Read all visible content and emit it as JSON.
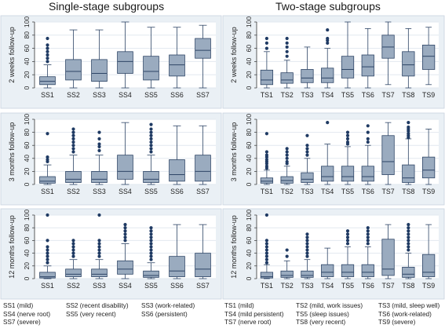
{
  "titles": {
    "left": "Single-stage subgroups",
    "right": "Two-stage subgroups"
  },
  "colors": {
    "box": "#9aabbf",
    "box_edge": "#2e4566",
    "outlier": "#1f3a63",
    "grid": "#e2e8ef",
    "plot_bg": "#ffffff",
    "panel_bg": "#eaf0f5"
  },
  "legend": {
    "left": [
      [
        "SS1 (mild)",
        "SS2 (recent disability)",
        "SS3 (work-related)"
      ],
      [
        "SS4 (nerve root)",
        "SS5 (very recent)",
        "SS6 (persistent)"
      ],
      [
        "SS7 (severe)"
      ]
    ],
    "right": [
      [
        "TS1 (mild)",
        "TS2 (mild, work issues)",
        "TS3 (mild, sleep well)"
      ],
      [
        "TS4 (mild persistent)",
        "TS5 (sleep issues)",
        "TS6 (work-related)"
      ],
      [
        "TS7 (nerve root)",
        "TS8 (very recent)",
        "TS9 (severe)"
      ]
    ]
  },
  "chart_data": [
    {
      "type": "box",
      "panel": "single-stage-2-weeks",
      "ylabel": "2 weeks follow-up",
      "ylim": [
        0,
        100
      ],
      "yticks": [
        0,
        20,
        40,
        60,
        80,
        100
      ],
      "categories": [
        "SS1",
        "SS2",
        "SS3",
        "SS4",
        "SS5",
        "SS6",
        "SS7"
      ],
      "boxes": [
        {
          "min": 0,
          "q1": 5,
          "median": 10,
          "q3": 17,
          "max": 35,
          "outliers": [
            40,
            45,
            50,
            55,
            60,
            65,
            75
          ]
        },
        {
          "min": 0,
          "q1": 12,
          "median": 25,
          "q3": 43,
          "max": 88,
          "outliers": []
        },
        {
          "min": 0,
          "q1": 10,
          "median": 22,
          "q3": 43,
          "max": 88,
          "outliers": []
        },
        {
          "min": 0,
          "q1": 22,
          "median": 40,
          "q3": 55,
          "max": 100,
          "outliers": []
        },
        {
          "min": 0,
          "q1": 12,
          "median": 25,
          "q3": 48,
          "max": 92,
          "outliers": []
        },
        {
          "min": 0,
          "q1": 18,
          "median": 35,
          "q3": 50,
          "max": 92,
          "outliers": []
        },
        {
          "min": 0,
          "q1": 45,
          "median": 57,
          "q3": 75,
          "max": 95,
          "outliers": []
        }
      ]
    },
    {
      "type": "box",
      "panel": "two-stage-2-weeks",
      "ylabel": "2 weeks follow-up",
      "ylim": [
        0,
        100
      ],
      "yticks": [
        0,
        20,
        40,
        60,
        80,
        100
      ],
      "categories": [
        "TS1",
        "TS2",
        "TS3",
        "TS4",
        "TS5",
        "TS6",
        "TS7",
        "TS8",
        "TS9"
      ],
      "boxes": [
        {
          "min": 0,
          "q1": 5,
          "median": 12,
          "q3": 27,
          "max": 55,
          "outliers": [
            60,
            68,
            75
          ]
        },
        {
          "min": 0,
          "q1": 7,
          "median": 12,
          "q3": 23,
          "max": 42,
          "outliers": [
            48,
            55,
            62,
            68,
            75
          ]
        },
        {
          "min": 0,
          "q1": 8,
          "median": 15,
          "q3": 28,
          "max": 62,
          "outliers": []
        },
        {
          "min": 0,
          "q1": 8,
          "median": 15,
          "q3": 30,
          "max": 60,
          "outliers": [
            68,
            72,
            75,
            88
          ]
        },
        {
          "min": 0,
          "q1": 15,
          "median": 28,
          "q3": 48,
          "max": 100,
          "outliers": []
        },
        {
          "min": 0,
          "q1": 18,
          "median": 32,
          "q3": 50,
          "max": 90,
          "outliers": []
        },
        {
          "min": 5,
          "q1": 45,
          "median": 62,
          "q3": 80,
          "max": 100,
          "outliers": []
        },
        {
          "min": 0,
          "q1": 18,
          "median": 35,
          "q3": 55,
          "max": 90,
          "outliers": []
        },
        {
          "min": 5,
          "q1": 28,
          "median": 48,
          "q3": 65,
          "max": 92,
          "outliers": []
        }
      ]
    },
    {
      "type": "box",
      "panel": "single-stage-3-months",
      "ylabel": "3 months follow-up",
      "ylim": [
        0,
        100
      ],
      "yticks": [
        0,
        20,
        40,
        60,
        80,
        100
      ],
      "categories": [
        "SS1",
        "SS2",
        "SS3",
        "SS4",
        "SS5",
        "SS6",
        "SS7"
      ],
      "boxes": [
        {
          "min": 0,
          "q1": 2,
          "median": 5,
          "q3": 12,
          "max": 30,
          "outliers": [
            35,
            38,
            42,
            78
          ]
        },
        {
          "min": 0,
          "q1": 3,
          "median": 8,
          "q3": 20,
          "max": 45,
          "outliers": [
            50,
            55,
            60,
            65,
            70,
            75,
            80,
            85
          ]
        },
        {
          "min": 0,
          "q1": 3,
          "median": 8,
          "q3": 20,
          "max": 45,
          "outliers": [
            52,
            58,
            62,
            70,
            80
          ]
        },
        {
          "min": 0,
          "q1": 8,
          "median": 20,
          "q3": 45,
          "max": 95,
          "outliers": []
        },
        {
          "min": 0,
          "q1": 3,
          "median": 8,
          "q3": 20,
          "max": 45,
          "outliers": [
            50,
            55,
            60,
            65,
            70,
            75,
            80,
            85,
            92
          ]
        },
        {
          "min": 0,
          "q1": 5,
          "median": 15,
          "q3": 38,
          "max": 90,
          "outliers": []
        },
        {
          "min": 0,
          "q1": 5,
          "median": 20,
          "q3": 45,
          "max": 90,
          "outliers": []
        }
      ]
    },
    {
      "type": "box",
      "panel": "two-stage-3-months",
      "ylabel": "3 months follow-up",
      "ylim": [
        0,
        100
      ],
      "yticks": [
        0,
        20,
        40,
        60,
        80,
        100
      ],
      "categories": [
        "TS1",
        "TS2",
        "TS3",
        "TS4",
        "TS5",
        "TS6",
        "TS7",
        "TS8",
        "TS9"
      ],
      "boxes": [
        {
          "min": 0,
          "q1": 2,
          "median": 5,
          "q3": 10,
          "max": 22,
          "outliers": [
            25,
            28,
            32,
            35,
            38,
            42,
            45,
            50,
            78
          ]
        },
        {
          "min": 0,
          "q1": 2,
          "median": 6,
          "q3": 12,
          "max": 28,
          "outliers": [
            32,
            35,
            40,
            45,
            50,
            55
          ]
        },
        {
          "min": 0,
          "q1": 3,
          "median": 8,
          "q3": 18,
          "max": 40,
          "outliers": [
            45,
            50,
            55,
            60,
            75
          ]
        },
        {
          "min": 0,
          "q1": 5,
          "median": 12,
          "q3": 28,
          "max": 62,
          "outliers": [
            95
          ]
        },
        {
          "min": 0,
          "q1": 5,
          "median": 12,
          "q3": 28,
          "max": 58,
          "outliers": [
            62,
            65,
            70,
            75,
            80
          ]
        },
        {
          "min": 0,
          "q1": 5,
          "median": 12,
          "q3": 28,
          "max": 60,
          "outliers": [
            65,
            70,
            80,
            90
          ]
        },
        {
          "min": 0,
          "q1": 15,
          "median": 35,
          "q3": 75,
          "max": 95,
          "outliers": []
        },
        {
          "min": 0,
          "q1": 3,
          "median": 10,
          "q3": 30,
          "max": 70,
          "outliers": [
            72,
            75,
            78,
            82,
            85,
            88,
            95
          ]
        },
        {
          "min": 0,
          "q1": 10,
          "median": 22,
          "q3": 42,
          "max": 85,
          "outliers": []
        }
      ]
    },
    {
      "type": "box",
      "panel": "single-stage-12-months",
      "ylabel": "12 months follow-up",
      "ylim": [
        0,
        100
      ],
      "yticks": [
        0,
        20,
        40,
        60,
        80,
        100
      ],
      "categories": [
        "SS1",
        "SS2",
        "SS3",
        "SS4",
        "SS5",
        "SS6",
        "SS7"
      ],
      "boxes": [
        {
          "min": 0,
          "q1": 1,
          "median": 3,
          "q3": 10,
          "max": 20,
          "outliers": [
            25,
            30,
            35,
            40,
            45,
            50,
            60,
            100
          ]
        },
        {
          "min": 0,
          "q1": 3,
          "median": 7,
          "q3": 15,
          "max": 30,
          "outliers": [
            35,
            40,
            45,
            50,
            55,
            60
          ]
        },
        {
          "min": 0,
          "q1": 3,
          "median": 7,
          "q3": 15,
          "max": 30,
          "outliers": [
            35,
            40,
            45,
            50,
            55,
            60,
            100
          ]
        },
        {
          "min": 0,
          "q1": 7,
          "median": 15,
          "q3": 28,
          "max": 55,
          "outliers": [
            60,
            65,
            70,
            75,
            80,
            85
          ]
        },
        {
          "min": 0,
          "q1": 2,
          "median": 5,
          "q3": 12,
          "max": 25,
          "outliers": [
            30,
            35,
            40,
            45,
            50,
            55,
            60,
            65,
            70,
            75,
            80
          ]
        },
        {
          "min": 0,
          "q1": 3,
          "median": 12,
          "q3": 35,
          "max": 85,
          "outliers": []
        },
        {
          "min": 0,
          "q1": 3,
          "median": 15,
          "q3": 40,
          "max": 85,
          "outliers": []
        }
      ]
    },
    {
      "type": "box",
      "panel": "two-stage-12-months",
      "ylabel": "12 months follow-up",
      "ylim": [
        0,
        100
      ],
      "yticks": [
        0,
        20,
        40,
        60,
        80,
        100
      ],
      "categories": [
        "TS1",
        "TS2",
        "TS3",
        "TS4",
        "TS5",
        "TS6",
        "TS7",
        "TS8",
        "TS9"
      ],
      "boxes": [
        {
          "min": 0,
          "q1": 1,
          "median": 3,
          "q3": 10,
          "max": 22,
          "outliers": [
            25,
            30,
            35,
            40,
            45,
            50,
            55,
            60,
            100
          ]
        },
        {
          "min": 0,
          "q1": 2,
          "median": 5,
          "q3": 12,
          "max": 28,
          "outliers": [
            35,
            45
          ]
        },
        {
          "min": 0,
          "q1": 2,
          "median": 5,
          "q3": 12,
          "max": 30,
          "outliers": [
            35,
            40,
            45,
            50,
            55,
            60,
            65,
            70
          ]
        },
        {
          "min": 0,
          "q1": 3,
          "median": 10,
          "q3": 22,
          "max": 48,
          "outliers": []
        },
        {
          "min": 0,
          "q1": 3,
          "median": 10,
          "q3": 22,
          "max": 50,
          "outliers": [
            55,
            60,
            65,
            70,
            75
          ]
        },
        {
          "min": 0,
          "q1": 3,
          "median": 10,
          "q3": 22,
          "max": 50,
          "outliers": [
            55,
            60,
            65,
            70,
            75,
            80
          ]
        },
        {
          "min": 0,
          "q1": 5,
          "median": 15,
          "q3": 62,
          "max": 85,
          "outliers": []
        },
        {
          "min": 0,
          "q1": 2,
          "median": 7,
          "q3": 18,
          "max": 40,
          "outliers": [
            45,
            50,
            55,
            60,
            65,
            70,
            75,
            80,
            85
          ]
        },
        {
          "min": 0,
          "q1": 3,
          "median": 10,
          "q3": 38,
          "max": 85,
          "outliers": []
        }
      ]
    }
  ]
}
